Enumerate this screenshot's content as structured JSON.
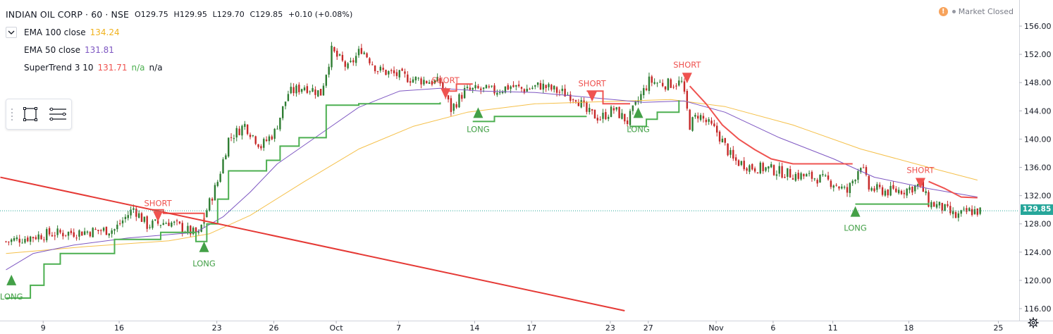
{
  "header": {
    "title": "INDIAN OIL CORP · 60 · NSE",
    "open": "O129.75",
    "high": "H129.95",
    "low": "L129.70",
    "close": "C129.85",
    "change": "+0.10 (+0.08%)"
  },
  "indicators": [
    {
      "name": "EMA 100 close",
      "value": "134.24",
      "color": "#f0b21e"
    },
    {
      "name": "EMA 50 close",
      "value": "131.81",
      "color": "#7e57c2"
    },
    {
      "name": "SuperTrend 3 10",
      "value": "131.71",
      "value2": "n/a",
      "value3": "n/a",
      "color": "#ef5350",
      "color2": "#4caf50"
    }
  ],
  "market_status": "Market Closed",
  "last_price": "129.85",
  "colors": {
    "up": "#26a69a",
    "down": "#ef5350",
    "candle_up": "#2e7d32",
    "candle_down": "#c62828",
    "trendline": "#e53935"
  },
  "chart_data": {
    "type": "candlestick",
    "y_axis": {
      "range": [
        115.5,
        157.5
      ],
      "ticks": [
        "156.00",
        "152.00",
        "148.00",
        "144.00",
        "140.00",
        "136.00",
        "132.00",
        "128.00",
        "124.00",
        "120.00",
        "116.00"
      ]
    },
    "x_axis": {
      "ticks": [
        "9",
        "16",
        "23",
        "26",
        "Oct",
        "7",
        "14",
        "17",
        "23",
        "27",
        "Nov",
        "6",
        "11",
        "18",
        "25"
      ]
    },
    "anchors": [
      {
        "i": 0,
        "v": 125.5
      },
      {
        "i": 4,
        "v": 125.8
      },
      {
        "i": 16,
        "v": 126.6
      },
      {
        "i": 26,
        "v": 126.8
      },
      {
        "i": 40,
        "v": 127.2
      },
      {
        "i": 47,
        "v": 130.2
      },
      {
        "i": 52,
        "v": 127.8
      },
      {
        "i": 60,
        "v": 128.3
      },
      {
        "i": 66,
        "v": 127.2
      },
      {
        "i": 71,
        "v": 126.4
      },
      {
        "i": 73,
        "v": 129.0
      },
      {
        "i": 78,
        "v": 134.0
      },
      {
        "i": 82,
        "v": 140.0
      },
      {
        "i": 88,
        "v": 142.0
      },
      {
        "i": 94,
        "v": 139.0
      },
      {
        "i": 99,
        "v": 141.0
      },
      {
        "i": 104,
        "v": 146.5
      },
      {
        "i": 110,
        "v": 147.5
      },
      {
        "i": 116,
        "v": 146.5
      },
      {
        "i": 120,
        "v": 152.5
      },
      {
        "i": 126,
        "v": 150.0
      },
      {
        "i": 131,
        "v": 152.8
      },
      {
        "i": 137,
        "v": 149.8
      },
      {
        "i": 150,
        "v": 148.5
      },
      {
        "i": 160,
        "v": 148.0
      },
      {
        "i": 164,
        "v": 144.2
      },
      {
        "i": 169,
        "v": 146.8
      },
      {
        "i": 174,
        "v": 147.0
      },
      {
        "i": 180,
        "v": 146.8
      },
      {
        "i": 186,
        "v": 147.5
      },
      {
        "i": 191,
        "v": 147.0
      },
      {
        "i": 197,
        "v": 147.6
      },
      {
        "i": 203,
        "v": 146.8
      },
      {
        "i": 210,
        "v": 146.0
      },
      {
        "i": 214,
        "v": 143.8
      },
      {
        "i": 219,
        "v": 143.0
      },
      {
        "i": 224,
        "v": 144.2
      },
      {
        "i": 229,
        "v": 142.5
      },
      {
        "i": 233,
        "v": 145.5
      },
      {
        "i": 237,
        "v": 148.2
      },
      {
        "i": 243,
        "v": 147.8
      },
      {
        "i": 249,
        "v": 148.0
      },
      {
        "i": 252,
        "v": 142.0
      },
      {
        "i": 255,
        "v": 143.5
      },
      {
        "i": 262,
        "v": 141.0
      },
      {
        "i": 268,
        "v": 137.0
      },
      {
        "i": 275,
        "v": 136.0
      },
      {
        "i": 281,
        "v": 135.8
      },
      {
        "i": 287,
        "v": 135.2
      },
      {
        "i": 293,
        "v": 134.8
      },
      {
        "i": 299,
        "v": 134.5
      },
      {
        "i": 305,
        "v": 133.8
      },
      {
        "i": 310,
        "v": 132.5
      },
      {
        "i": 315,
        "v": 136.5
      },
      {
        "i": 318,
        "v": 133.0
      },
      {
        "i": 325,
        "v": 132.6
      },
      {
        "i": 331,
        "v": 132.8
      },
      {
        "i": 337,
        "v": 133.5
      },
      {
        "i": 340,
        "v": 131.0
      },
      {
        "i": 345,
        "v": 130.3
      },
      {
        "i": 350,
        "v": 129.0
      },
      {
        "i": 355,
        "v": 129.8
      }
    ],
    "super_trend_support": [
      {
        "i": 0,
        "v": 117.5
      },
      {
        "i": 9,
        "v": 119.3
      },
      {
        "i": 14,
        "v": 122.3
      },
      {
        "i": 20,
        "v": 123.8
      },
      {
        "i": 40,
        "v": 125.8
      },
      {
        "i": 57,
        "v": 126.8
      },
      {
        "i": 70,
        "v": 125.5
      },
      {
        "i": 74,
        "v": 128.0
      },
      {
        "i": 78,
        "v": 131.5
      },
      {
        "i": 82,
        "v": 135.5
      },
      {
        "i": 96,
        "v": 137.0
      },
      {
        "i": 101,
        "v": 139.0
      },
      {
        "i": 108,
        "v": 140.2
      },
      {
        "i": 118,
        "v": 144.8
      },
      {
        "i": 130,
        "v": 145.0
      },
      {
        "i": 160,
        "v": 145.2
      }
    ],
    "super_trend_support2": [
      {
        "i": 172,
        "v": 142.5
      },
      {
        "i": 180,
        "v": 143.2
      },
      {
        "i": 214,
        "v": 143.2
      }
    ],
    "super_trend_support3": [
      {
        "i": 230,
        "v": 141.8
      },
      {
        "i": 236,
        "v": 142.8
      },
      {
        "i": 240,
        "v": 143.8
      },
      {
        "i": 248,
        "v": 145.5
      }
    ],
    "super_trend_support4": [
      {
        "i": 313,
        "v": 130.8
      },
      {
        "i": 335,
        "v": 130.8
      },
      {
        "i": 340,
        "v": 131.0
      }
    ],
    "super_trend_resist1": [
      {
        "i": 54,
        "v": 130.0
      },
      {
        "i": 58,
        "v": 129.5
      },
      {
        "i": 64,
        "v": 129.5
      },
      {
        "i": 73,
        "v": 128.2
      }
    ],
    "super_trend_resist2": [
      {
        "i": 161,
        "v": 146.8
      },
      {
        "i": 166,
        "v": 147.8
      },
      {
        "i": 172,
        "v": 147.8
      }
    ],
    "super_trend_resist3": [
      {
        "i": 214,
        "v": 146.8
      },
      {
        "i": 220,
        "v": 145.0
      },
      {
        "i": 230,
        "v": 145.0
      }
    ],
    "super_trend_resist4": [
      {
        "i": 252,
        "v": 147.5
      },
      {
        "i": 258,
        "v": 145.0
      },
      {
        "i": 264,
        "v": 142.0
      },
      {
        "i": 270,
        "v": 140.0
      },
      {
        "i": 276,
        "v": 138.5
      },
      {
        "i": 282,
        "v": 137.2
      },
      {
        "i": 290,
        "v": 136.5
      },
      {
        "i": 300,
        "v": 136.5
      },
      {
        "i": 312,
        "v": 136.5
      }
    ],
    "super_trend_resist5": [
      {
        "i": 340,
        "v": 134.0
      },
      {
        "i": 346,
        "v": 133.0
      },
      {
        "i": 352,
        "v": 131.8
      },
      {
        "i": 358,
        "v": 131.7
      }
    ],
    "ema50": [
      {
        "i": 0,
        "v": 121.5
      },
      {
        "i": 10,
        "v": 123.8
      },
      {
        "i": 25,
        "v": 125.0
      },
      {
        "i": 45,
        "v": 126.0
      },
      {
        "i": 70,
        "v": 126.8
      },
      {
        "i": 80,
        "v": 129.0
      },
      {
        "i": 90,
        "v": 132.5
      },
      {
        "i": 100,
        "v": 136.5
      },
      {
        "i": 115,
        "v": 140.5
      },
      {
        "i": 130,
        "v": 144.5
      },
      {
        "i": 145,
        "v": 146.8
      },
      {
        "i": 160,
        "v": 147.2
      },
      {
        "i": 175,
        "v": 146.8
      },
      {
        "i": 195,
        "v": 146.6
      },
      {
        "i": 215,
        "v": 145.9
      },
      {
        "i": 235,
        "v": 145.2
      },
      {
        "i": 250,
        "v": 145.4
      },
      {
        "i": 265,
        "v": 143.8
      },
      {
        "i": 285,
        "v": 140.2
      },
      {
        "i": 305,
        "v": 137.2
      },
      {
        "i": 320,
        "v": 134.6
      },
      {
        "i": 340,
        "v": 133.0
      },
      {
        "i": 358,
        "v": 131.8
      }
    ],
    "ema100": [
      {
        "i": 0,
        "v": 123.8
      },
      {
        "i": 30,
        "v": 124.8
      },
      {
        "i": 60,
        "v": 125.6
      },
      {
        "i": 75,
        "v": 126.6
      },
      {
        "i": 90,
        "v": 129.2
      },
      {
        "i": 110,
        "v": 134.0
      },
      {
        "i": 130,
        "v": 138.6
      },
      {
        "i": 150,
        "v": 141.8
      },
      {
        "i": 170,
        "v": 143.8
      },
      {
        "i": 195,
        "v": 145.0
      },
      {
        "i": 220,
        "v": 145.3
      },
      {
        "i": 245,
        "v": 145.6
      },
      {
        "i": 265,
        "v": 144.6
      },
      {
        "i": 290,
        "v": 142.0
      },
      {
        "i": 315,
        "v": 138.6
      },
      {
        "i": 340,
        "v": 136.0
      },
      {
        "i": 358,
        "v": 134.2
      }
    ],
    "trendline": {
      "from": {
        "i": 0,
        "v": 134.6
      },
      "to": {
        "i": 228,
        "v": 115.7
      }
    },
    "signals": [
      {
        "type": "long",
        "label": "LONG",
        "i": 2,
        "v": 119.3
      },
      {
        "type": "short",
        "label": "SHORT",
        "i": 56,
        "v": 129.8
      },
      {
        "type": "long",
        "label": "LONG",
        "i": 73,
        "v": 124.0
      },
      {
        "type": "short",
        "label": "SHORT",
        "i": 162,
        "v": 147.2
      },
      {
        "type": "long",
        "label": "LONG",
        "i": 174,
        "v": 143.0
      },
      {
        "type": "short",
        "label": "SHORT",
        "i": 216,
        "v": 146.8
      },
      {
        "type": "long",
        "label": "LONG",
        "i": 233,
        "v": 143.0
      },
      {
        "type": "short",
        "label": "SHORT",
        "i": 251,
        "v": 149.4
      },
      {
        "type": "long",
        "label": "LONG",
        "i": 313,
        "v": 129.0
      },
      {
        "type": "short",
        "label": "SHORT",
        "i": 337,
        "v": 134.5
      }
    ],
    "last_price_line": 129.85
  }
}
